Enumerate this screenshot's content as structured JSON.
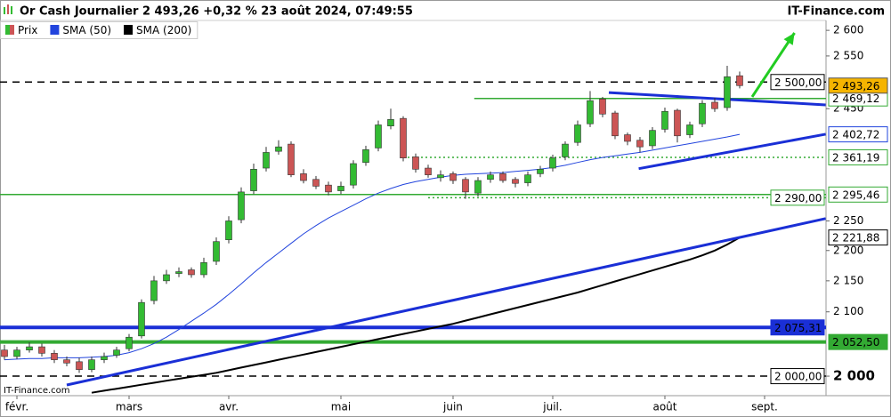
{
  "header": {
    "title": "Or Cash Journalier 2 493,26 +0,32 % 23 août 2024, 07:49:55",
    "brand": "IT-Finance.com"
  },
  "watermark": "IT-Finance.com",
  "chart_data": {
    "type": "candlestick",
    "log_scale": true,
    "xlim": [
      -0.357,
      65.93
    ],
    "xticks": [
      {
        "value": 1,
        "label": "févr."
      },
      {
        "value": 10,
        "label": "mars"
      },
      {
        "value": 18,
        "label": "avr."
      },
      {
        "value": 27,
        "label": "mai"
      },
      {
        "value": 36,
        "label": "juin"
      },
      {
        "value": 44,
        "label": "juil."
      },
      {
        "value": 53,
        "label": "août"
      },
      {
        "value": 61,
        "label": "sept."
      }
    ],
    "ylim": [
      1970.6,
      2619.6
    ],
    "yticks": [
      {
        "value": 2000,
        "label": "2 000"
      },
      {
        "value": 2100,
        "label": "2 100"
      },
      {
        "value": 2150,
        "label": "2 150"
      },
      {
        "value": 2200,
        "label": "2 200"
      },
      {
        "value": 2250,
        "label": "2 250"
      },
      {
        "value": 2450,
        "label": "2 450"
      },
      {
        "value": 2550,
        "label": "2 550"
      },
      {
        "value": 2600,
        "label": "2 600"
      }
    ],
    "price": {
      "name": "Prix",
      "up_color": "#33bb33",
      "down_color": "#cc5555",
      "open": [
        2040,
        2030,
        2040,
        2045,
        2035,
        2025,
        2022,
        2010,
        2025,
        2032,
        2042,
        2062,
        2118,
        2150,
        2162,
        2168,
        2160,
        2182,
        2218,
        2252,
        2302,
        2342,
        2372,
        2385,
        2332,
        2322,
        2312,
        2302,
        2312,
        2352,
        2378,
        2418,
        2432,
        2362,
        2342,
        2325,
        2332,
        2322,
        2298,
        2322,
        2332,
        2322,
        2316,
        2332,
        2342,
        2362,
        2388,
        2422,
        2468,
        2442,
        2402,
        2392,
        2382,
        2412,
        2447,
        2402,
        2422,
        2462,
        2452,
        2512
      ],
      "high": [
        2048,
        2045,
        2052,
        2050,
        2040,
        2030,
        2028,
        2030,
        2036,
        2045,
        2065,
        2120,
        2158,
        2168,
        2172,
        2172,
        2188,
        2222,
        2258,
        2308,
        2350,
        2380,
        2392,
        2390,
        2340,
        2328,
        2318,
        2318,
        2356,
        2382,
        2428,
        2450,
        2436,
        2368,
        2348,
        2338,
        2336,
        2326,
        2326,
        2336,
        2336,
        2326,
        2336,
        2346,
        2366,
        2390,
        2428,
        2483,
        2472,
        2446,
        2406,
        2398,
        2416,
        2452,
        2450,
        2426,
        2466,
        2470,
        2531,
        2520
      ],
      "low": [
        2025,
        2026,
        2036,
        2030,
        2020,
        2015,
        2005,
        2006,
        2020,
        2028,
        2038,
        2058,
        2112,
        2145,
        2156,
        2155,
        2155,
        2176,
        2212,
        2246,
        2296,
        2336,
        2366,
        2326,
        2315,
        2305,
        2294,
        2296,
        2306,
        2346,
        2372,
        2412,
        2354,
        2334,
        2325,
        2318,
        2314,
        2288,
        2292,
        2316,
        2316,
        2308,
        2310,
        2326,
        2336,
        2356,
        2382,
        2416,
        2434,
        2394,
        2383,
        2370,
        2376,
        2406,
        2388,
        2396,
        2416,
        2444,
        2446,
        2488
      ],
      "close": [
        2030,
        2040,
        2045,
        2035,
        2025,
        2020,
        2010,
        2025,
        2030,
        2040,
        2060,
        2115,
        2150,
        2160,
        2165,
        2160,
        2180,
        2215,
        2250,
        2300,
        2340,
        2370,
        2380,
        2330,
        2320,
        2310,
        2300,
        2310,
        2350,
        2375,
        2420,
        2430,
        2360,
        2340,
        2330,
        2330,
        2320,
        2300,
        2320,
        2330,
        2320,
        2315,
        2330,
        2340,
        2360,
        2385,
        2420,
        2465,
        2440,
        2400,
        2390,
        2380,
        2410,
        2445,
        2400,
        2420,
        2460,
        2450,
        2510,
        2493.26
      ],
      "last_label": "2 493,26",
      "label_color": "#f5b400"
    },
    "series": [
      {
        "name": "SMA (50)",
        "color": "#2244dd",
        "end_label": "2 402,72",
        "values": [
          2025,
          2026,
          2027,
          2027,
          2028,
          2028,
          2028,
          2029,
          2030,
          2032,
          2036,
          2042,
          2050,
          2060,
          2072,
          2085,
          2098,
          2112,
          2128,
          2145,
          2163,
          2180,
          2196,
          2212,
          2228,
          2242,
          2255,
          2266,
          2277,
          2288,
          2298,
          2306,
          2313,
          2318,
          2322,
          2326,
          2329,
          2331,
          2332,
          2333,
          2334,
          2336,
          2338,
          2340,
          2343,
          2347,
          2352,
          2357,
          2361,
          2364,
          2367,
          2370,
          2374,
          2378,
          2382,
          2386,
          2390,
          2394,
          2398,
          2402.72
        ]
      },
      {
        "name": "SMA (200)",
        "color": "#000000",
        "end_label": "2 221,88",
        "values": [
          null,
          null,
          null,
          null,
          null,
          null,
          null,
          1975,
          1978,
          1981,
          1984,
          1987,
          1990,
          1993,
          1996,
          1999,
          2002,
          2005,
          2009,
          2013,
          2017,
          2021,
          2025,
          2029,
          2033,
          2037,
          2041,
          2045,
          2049,
          2053,
          2057,
          2061,
          2065,
          2069,
          2073,
          2077,
          2081,
          2086,
          2091,
          2096,
          2101,
          2106,
          2111,
          2116,
          2121,
          2126,
          2131,
          2137,
          2143,
          2149,
          2155,
          2161,
          2167,
          2173,
          2179,
          2185,
          2192,
          2200,
          2210,
          2221.88
        ]
      }
    ],
    "levels": [
      {
        "value": 2500,
        "label": "2 500,00",
        "color": "#000000",
        "style": "dashed",
        "label_place": "plot"
      },
      {
        "value": 2469.12,
        "label": "2 469,12",
        "color": "#33aa33",
        "style": "solid",
        "start": 37.7,
        "label_place": "axis"
      },
      {
        "value": 2361.19,
        "label": "2 361,19",
        "color": "#33aa33",
        "style": "dotted",
        "start": 32,
        "label_place": "axis"
      },
      {
        "value": 2295.46,
        "label": "2 295,46",
        "color": "#33aa33",
        "style": "solid",
        "label_place": "axis"
      },
      {
        "value": 2290,
        "label": "2 290,00",
        "color": "#33aa33",
        "style": "dotted",
        "start": 34,
        "label_place": "plot"
      },
      {
        "value": 2075.31,
        "label": "2 075,31",
        "color": "#1a2fd6",
        "style": "thick",
        "label_place": "plot"
      },
      {
        "value": 2052.5,
        "label": "2 052,50",
        "color": "#33aa33",
        "style": "thick",
        "label_place": "axis"
      },
      {
        "value": 2000,
        "label": "2 000,00",
        "color": "#000000",
        "style": "dashed",
        "label_place": "plot"
      }
    ],
    "trendlines": [
      {
        "color": "#1a2fd6",
        "x": [
          5,
          65.9
        ],
        "y": [
          1986.6,
          2254
        ]
      },
      {
        "color": "#1a2fd6",
        "x": [
          48.5,
          65.9
        ],
        "y": [
          2480,
          2457
        ]
      },
      {
        "color": "#1a2fd6",
        "x": [
          50.9,
          65.9
        ],
        "y": [
          2341,
          2403
        ]
      }
    ],
    "arrow": {
      "color": "#22cc22",
      "x": [
        60,
        63.4
      ],
      "y": [
        2472,
        2595
      ]
    }
  }
}
